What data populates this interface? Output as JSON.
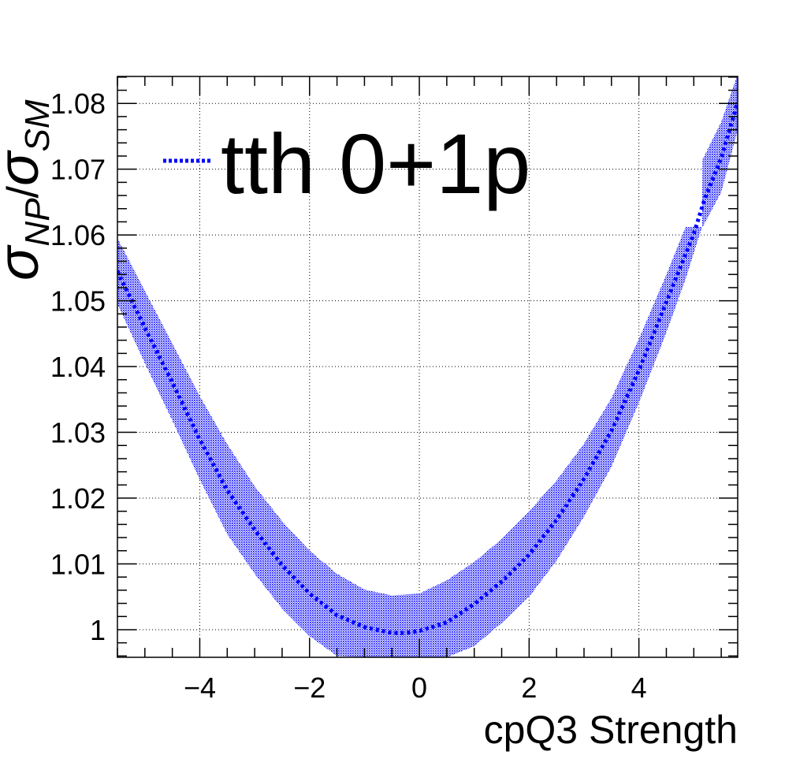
{
  "chart_data": {
    "type": "line",
    "title": "",
    "xlabel": "cpQ3 Strength",
    "ylabel": {
      "base": "σ",
      "num_sub": "NP",
      "slash": "/",
      "den_base": "σ",
      "den_sub": "SM"
    },
    "xlim": [
      -5.5,
      5.8
    ],
    "ylim": [
      0.9958,
      1.0841
    ],
    "xticks": [
      -4,
      -2,
      0,
      2,
      4
    ],
    "xtick_labels": [
      "−4",
      "−2",
      "0",
      "2",
      "4"
    ],
    "yticks": [
      1.0,
      1.01,
      1.02,
      1.03,
      1.04,
      1.05,
      1.06,
      1.07,
      1.08
    ],
    "ytick_labels": [
      "1",
      "1.01",
      "1.02",
      "1.03",
      "1.04",
      "1.05",
      "1.06",
      "1.07",
      "1.08"
    ],
    "grid": true,
    "legend": {
      "position": "top-left",
      "entries": [
        "tth 0+1p"
      ]
    },
    "colors": {
      "series": "#0000ff",
      "band": "#0000ff"
    },
    "series": [
      {
        "name": "tth 0+1p",
        "style": "dotted",
        "x": [
          -5.5,
          -5.0,
          -4.5,
          -4.0,
          -3.5,
          -3.0,
          -2.5,
          -2.0,
          -1.5,
          -1.0,
          -0.5,
          -0.25,
          0.0,
          0.5,
          1.0,
          1.5,
          2.0,
          2.5,
          3.0,
          3.5,
          4.0,
          4.5,
          5.0,
          5.2,
          5.5,
          5.8
        ],
        "y": [
          1.0545,
          1.0459,
          1.0376,
          1.0289,
          1.0212,
          1.0152,
          1.0098,
          1.0055,
          1.0022,
          1.0004,
          0.9995,
          0.9995,
          0.9998,
          1.0011,
          1.0039,
          1.0073,
          1.0114,
          1.0167,
          1.0229,
          1.0302,
          1.0394,
          1.0498,
          1.0602,
          1.0655,
          1.0717,
          1.0802
        ]
      }
    ],
    "band": {
      "x": [
        -5.5,
        -5.0,
        -4.5,
        -4.0,
        -3.5,
        -3.0,
        -2.5,
        -2.0,
        -1.5,
        -1.0,
        -0.5,
        0.0,
        0.5,
        1.0,
        1.5,
        2.0,
        2.5,
        3.0,
        3.5,
        4.0,
        4.5,
        4.85,
        5.15,
        5.16,
        5.5,
        5.8
      ],
      "upper": [
        1.0595,
        1.0515,
        1.0435,
        1.0355,
        1.0282,
        1.0218,
        1.0165,
        1.012,
        1.0085,
        1.0061,
        1.0052,
        1.0055,
        1.0075,
        1.0103,
        1.0138,
        1.018,
        1.0227,
        1.0283,
        1.0352,
        1.0442,
        1.054,
        1.0612,
        1.0612,
        1.0715,
        1.0772,
        1.0845
      ],
      "lower": [
        1.0495,
        1.0405,
        1.0318,
        1.0228,
        1.0145,
        1.0085,
        1.0032,
        0.999,
        0.996,
        0.9958,
        0.9958,
        0.9958,
        0.9958,
        0.9975,
        1.001,
        1.005,
        1.0105,
        1.0172,
        1.0248,
        1.0345,
        1.0452,
        1.0533,
        1.0612,
        1.0612,
        1.0665,
        1.076
      ]
    }
  }
}
